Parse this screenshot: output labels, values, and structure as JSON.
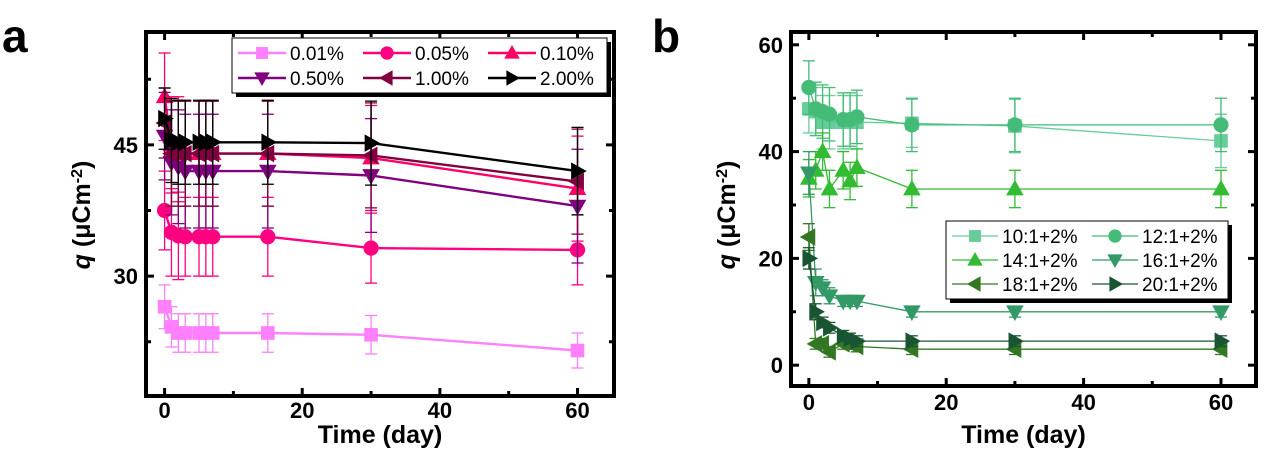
{
  "chart_data": [
    {
      "panel": "a",
      "type": "line",
      "title": "",
      "xlabel": "Time (day)",
      "ylabel_italic": "q",
      "ylabel_rest": " (μCm",
      "ylabel_sup": "-2",
      "ylabel_close": ")",
      "xlim": [
        -2.7,
        65.3
      ],
      "ylim": [
        16.3,
        57.9
      ],
      "xticks": [
        0,
        20,
        40,
        60
      ],
      "xminor": [
        10,
        30,
        50
      ],
      "yticks": [
        30,
        45
      ],
      "yminor": [
        22.5,
        37.5,
        52.5
      ],
      "grid": false,
      "legend_position": "top-right",
      "legend_columns": 3,
      "x": [
        0,
        1,
        2,
        3,
        5,
        6,
        7,
        15,
        30,
        60
      ],
      "series": [
        {
          "name": "0.01%",
          "color": "#ff80ff",
          "marker": "square",
          "values": [
            26.5,
            24.2,
            23.5,
            23.5,
            23.5,
            23.5,
            23.5,
            23.5,
            23.3,
            21.5
          ],
          "errors": [
            2.5,
            2.3,
            2.2,
            2.2,
            2.2,
            2.2,
            2.2,
            2.2,
            2.2,
            2.0
          ]
        },
        {
          "name": "0.05%",
          "color": "#ff0080",
          "marker": "circle",
          "values": [
            37.5,
            35.0,
            34.6,
            34.5,
            34.5,
            34.5,
            34.5,
            34.5,
            33.2,
            33.0
          ],
          "errors": [
            4.5,
            5.0,
            5.0,
            4.5,
            4.5,
            4.5,
            4.5,
            4.5,
            4.0,
            4.0
          ]
        },
        {
          "name": "0.10%",
          "color": "#ff0066",
          "marker": "triangle-up",
          "values": [
            50.5,
            45.0,
            44.5,
            44.0,
            44.0,
            44.0,
            44.0,
            44.0,
            43.5,
            40.0
          ],
          "errors": [
            5.0,
            5.5,
            6.0,
            6.0,
            6.0,
            6.0,
            6.0,
            6.0,
            6.0,
            6.0
          ]
        },
        {
          "name": "0.50%",
          "color": "#800080",
          "marker": "triangle-down",
          "values": [
            46.0,
            43.0,
            42.5,
            42.0,
            42.0,
            42.0,
            42.0,
            42.0,
            41.5,
            38.0
          ],
          "errors": [
            5.0,
            6.0,
            6.5,
            6.5,
            6.5,
            6.5,
            6.5,
            6.5,
            6.5,
            6.5
          ]
        },
        {
          "name": "1.00%",
          "color": "#800040",
          "marker": "triangle-left",
          "values": [
            47.5,
            44.0,
            44.0,
            44.0,
            44.0,
            44.0,
            44.0,
            44.0,
            43.8,
            40.8
          ],
          "errors": [
            4.0,
            6.0,
            6.0,
            6.0,
            6.0,
            6.0,
            6.0,
            6.0,
            6.0,
            6.0
          ]
        },
        {
          "name": "2.00%",
          "color": "#000000",
          "marker": "triangle-right",
          "values": [
            48.0,
            45.5,
            45.3,
            45.3,
            45.3,
            45.3,
            45.3,
            45.3,
            45.2,
            42.0
          ],
          "errors": [
            3.5,
            4.8,
            4.8,
            4.8,
            4.8,
            4.8,
            4.8,
            4.8,
            4.8,
            5.0
          ]
        }
      ]
    },
    {
      "panel": "b",
      "type": "line",
      "title": "",
      "xlabel": "Time (day)",
      "ylabel_italic": "q",
      "ylabel_rest": " (μCm",
      "ylabel_sup": "-2",
      "ylabel_close": ")",
      "xlim": [
        -2.6,
        65.1
      ],
      "ylim": [
        -3.9,
        62.4
      ],
      "xticks": [
        0,
        20,
        40,
        60
      ],
      "xminor": [
        10,
        30,
        50
      ],
      "yticks": [
        0,
        20,
        40,
        60
      ],
      "yminor": [
        10,
        30,
        50
      ],
      "grid": false,
      "legend_position": "center-right",
      "legend_columns": 2,
      "x": [
        0,
        1,
        2,
        3,
        5,
        6,
        7,
        15,
        30,
        60
      ],
      "series": [
        {
          "name": "10:1+2%",
          "color": "#66cc99",
          "marker": "square",
          "values": [
            48.0,
            47.5,
            45.5,
            45.5,
            45.5,
            45.5,
            45.5,
            45.3,
            44.8,
            42.0
          ],
          "errors": [
            4.5,
            4.5,
            5.0,
            5.0,
            5.0,
            5.0,
            5.0,
            4.5,
            5.0,
            5.0
          ]
        },
        {
          "name": "12:1+2%",
          "color": "#44bb77",
          "marker": "circle",
          "values": [
            52.0,
            48.0,
            47.5,
            47.0,
            46.0,
            46.0,
            46.5,
            45.0,
            45.0,
            45.0
          ],
          "errors": [
            5.0,
            5.0,
            5.0,
            5.0,
            5.0,
            5.0,
            5.0,
            5.0,
            5.0,
            5.0
          ]
        },
        {
          "name": "14:1+2%",
          "color": "#33bb33",
          "marker": "triangle-up",
          "values": [
            35.0,
            36.5,
            40.0,
            33.0,
            36.5,
            34.5,
            37.0,
            33.0,
            33.0,
            33.0
          ],
          "errors": [
            3.5,
            3.5,
            3.5,
            3.5,
            3.5,
            3.5,
            3.5,
            3.5,
            3.5,
            3.5
          ]
        },
        {
          "name": "16:1+2%",
          "color": "#339966",
          "marker": "triangle-down",
          "values": [
            36.0,
            15.5,
            14.5,
            13.0,
            12.0,
            12.0,
            12.0,
            10.0,
            10.0,
            10.0
          ],
          "errors": [
            4.0,
            2.5,
            1.5,
            1.5,
            1.0,
            1.0,
            1.0,
            1.0,
            1.0,
            1.0
          ]
        },
        {
          "name": "18:1+2%",
          "color": "#337722",
          "marker": "triangle-left",
          "values": [
            24.0,
            4.0,
            4.0,
            2.5,
            4.0,
            4.0,
            3.5,
            3.0,
            3.0,
            3.0
          ],
          "errors": [
            2.5,
            1.0,
            1.0,
            1.0,
            1.0,
            1.0,
            1.0,
            1.0,
            1.0,
            1.0
          ]
        },
        {
          "name": "20:1+2%",
          "color": "#1a5533",
          "marker": "triangle-right",
          "values": [
            20.0,
            10.0,
            8.0,
            7.0,
            5.5,
            5.0,
            4.5,
            4.5,
            4.5,
            4.5
          ],
          "errors": [
            2.0,
            1.5,
            1.0,
            1.0,
            1.0,
            1.0,
            1.0,
            1.0,
            1.0,
            1.0
          ]
        }
      ]
    }
  ]
}
